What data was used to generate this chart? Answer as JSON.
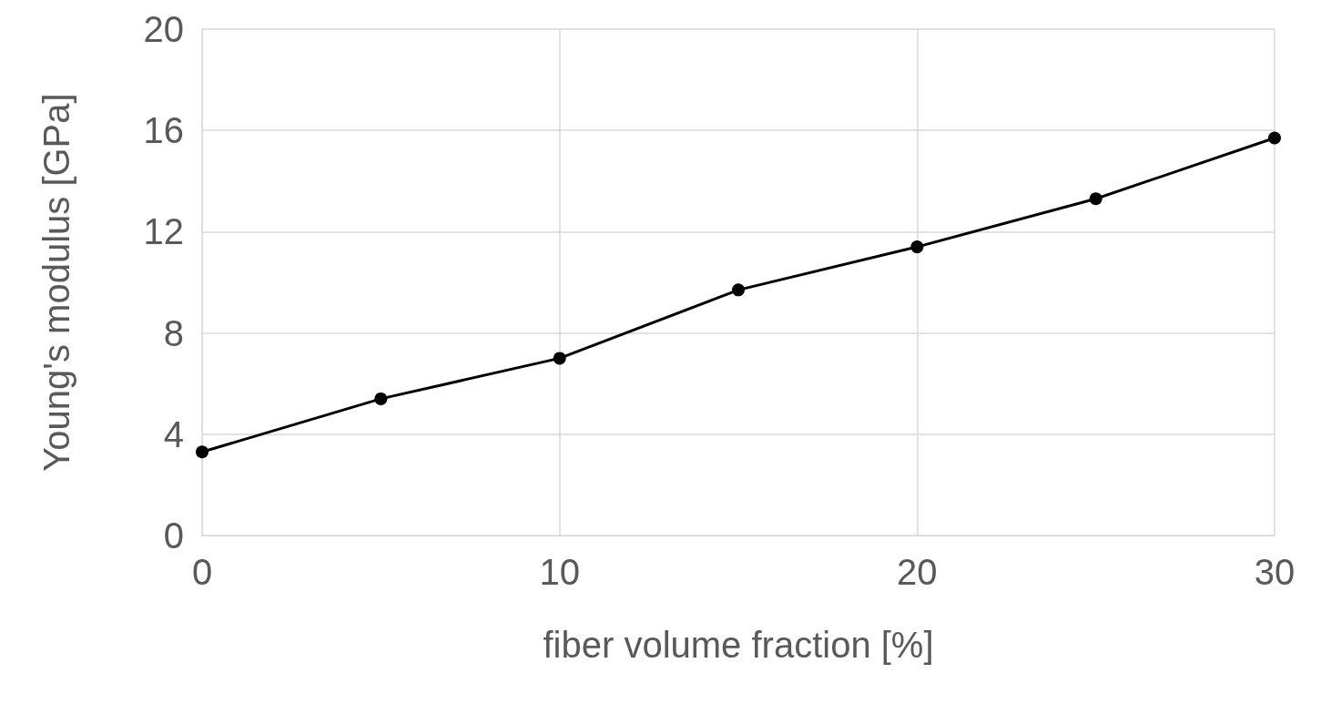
{
  "chart_data": {
    "type": "line",
    "xlabel": "fiber volume fraction [%]",
    "ylabel": "Young's modulus [GPa]",
    "x": [
      0,
      5,
      10,
      15,
      20,
      25,
      30
    ],
    "series": [
      {
        "color": "#000000",
        "values": [
          3.3,
          5.4,
          7.0,
          9.7,
          11.4,
          13.3,
          15.7
        ]
      }
    ],
    "xlim": [
      0,
      30
    ],
    "xticks": [
      0,
      10,
      20,
      30
    ],
    "ylim": [
      0,
      20
    ],
    "yticks": [
      0,
      4,
      8,
      12,
      16,
      20
    ],
    "grid": true,
    "marker": "circle",
    "line_style": "solid"
  }
}
